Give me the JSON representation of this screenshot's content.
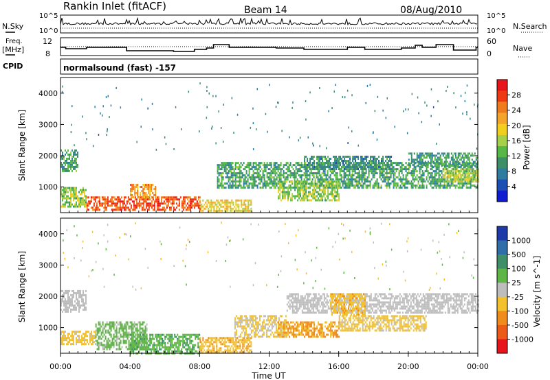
{
  "header": {
    "station": "Rankin Inlet (fitACF)",
    "beam": "Beam 14",
    "date": "08/Aug/2010"
  },
  "left_labels": {
    "nsky": "N.Sky",
    "freq_line1": "Freq.",
    "freq_line2": "[MHz]",
    "cpid": "CPID"
  },
  "right_labels": {
    "nsearch": "N.Search",
    "nave": "Nave"
  },
  "nsky_ticks": {
    "top": "10^5",
    "bottom": "10^0"
  },
  "freq_ticks": {
    "top": "12",
    "bottom": "8"
  },
  "nave_ticks": {
    "top": "60",
    "bottom": "0"
  },
  "cpid_text": "normalsound (fast) -157",
  "axes": {
    "ylabel": "Slant Range [km]",
    "yticks": [
      "4000",
      "3000",
      "2000",
      "1000"
    ],
    "xticks": [
      "00:00",
      "04:00",
      "08:00",
      "12:00",
      "16:00",
      "20:00",
      "00:00"
    ],
    "xlabel": "Time UT"
  },
  "power_colorbar": {
    "label": "Power [dB]",
    "ticks": [
      "28",
      "24",
      "20",
      "16",
      "12",
      "8",
      "4"
    ],
    "colors": [
      "#e8141b",
      "#ee3a12",
      "#f07b1d",
      "#f3a52b",
      "#f1cf1f",
      "#a7d04a",
      "#57b847",
      "#3e8f68",
      "#2e7d9e",
      "#1b4fb3",
      "#0f1ccf"
    ]
  },
  "velocity_colorbar": {
    "label": "Velocity [m s^-1]",
    "ticks": [
      "1000",
      "500",
      "100",
      "25",
      "-25",
      "-100",
      "-500",
      "-1000"
    ],
    "colors": [
      "#1e3aa8",
      "#2f6ea8",
      "#3e8f68",
      "#5fb545",
      "#bdbdbd",
      "#f3c12b",
      "#f08c1c",
      "#ec5a17",
      "#e8141b"
    ]
  },
  "chart_data": [
    {
      "type": "heatmap",
      "name": "Power",
      "xlabel": "Time UT",
      "ylabel": "Slant Range [km]",
      "xlim": [
        0,
        24
      ],
      "ylim": [
        180,
        4500
      ],
      "colorbar_range": [
        0,
        30
      ],
      "bands": [
        {
          "t0": 0.0,
          "t1": 1.0,
          "r0": 1500,
          "r1": 2200,
          "value": 10
        },
        {
          "t0": 0.0,
          "t1": 1.5,
          "r0": 400,
          "r1": 1000,
          "value": 14
        },
        {
          "t0": 1.5,
          "t1": 8.0,
          "r0": 250,
          "r1": 700,
          "value": 26
        },
        {
          "t0": 4.0,
          "t1": 5.5,
          "r0": 700,
          "r1": 1100,
          "value": 22
        },
        {
          "t0": 8.0,
          "t1": 11.0,
          "r0": 250,
          "r1": 600,
          "value": 18
        },
        {
          "t0": 9.0,
          "t1": 24.0,
          "r0": 1000,
          "r1": 1800,
          "value": 10
        },
        {
          "t0": 12.5,
          "t1": 16.0,
          "r0": 600,
          "r1": 1200,
          "value": 14
        },
        {
          "t0": 14.0,
          "t1": 19.0,
          "r0": 1600,
          "r1": 2000,
          "value": 8
        },
        {
          "t0": 20.0,
          "t1": 24.0,
          "r0": 1700,
          "r1": 2100,
          "value": 9
        },
        {
          "t0": 22.0,
          "t1": 24.0,
          "r0": 1200,
          "r1": 1600,
          "value": 16
        }
      ]
    },
    {
      "type": "heatmap",
      "name": "Velocity",
      "xlabel": "Time UT",
      "ylabel": "Slant Range [km]",
      "xlim": [
        0,
        24
      ],
      "ylim": [
        180,
        4500
      ],
      "colorbar_range": [
        -1000,
        1000
      ],
      "bands": [
        {
          "t0": 0.0,
          "t1": 1.5,
          "r0": 1500,
          "r1": 2200,
          "value": 0
        },
        {
          "t0": 0.0,
          "t1": 2.0,
          "r0": 500,
          "r1": 900,
          "value": -200
        },
        {
          "t0": 2.0,
          "t1": 5.0,
          "r0": 300,
          "r1": 1200,
          "value": 200
        },
        {
          "t0": 4.0,
          "t1": 8.0,
          "r0": 200,
          "r1": 800,
          "value": 300
        },
        {
          "t0": 8.0,
          "t1": 11.0,
          "r0": 200,
          "r1": 700,
          "value": -300
        },
        {
          "t0": 10.0,
          "t1": 13.0,
          "r0": 700,
          "r1": 1400,
          "value": -150
        },
        {
          "t0": 12.5,
          "t1": 16.0,
          "r0": 700,
          "r1": 1200,
          "value": -400
        },
        {
          "t0": 13.0,
          "t1": 24.0,
          "r0": 1500,
          "r1": 2100,
          "value": 0
        },
        {
          "t0": 15.5,
          "t1": 17.5,
          "r0": 1400,
          "r1": 2100,
          "value": -300
        },
        {
          "t0": 16.0,
          "t1": 21.0,
          "r0": 900,
          "r1": 1400,
          "value": -200
        }
      ]
    }
  ]
}
